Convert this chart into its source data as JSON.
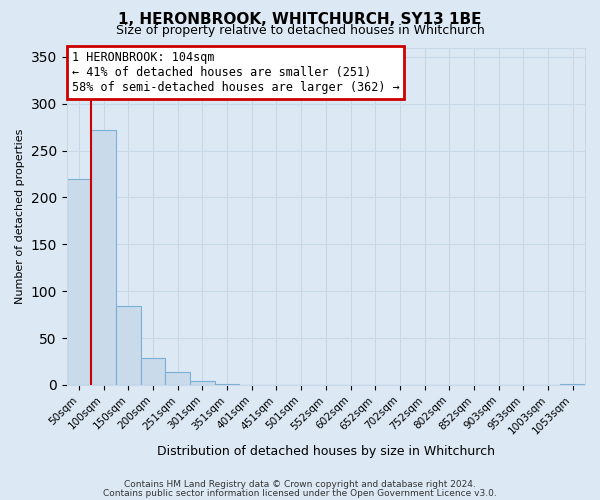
{
  "title": "1, HERONBROOK, WHITCHURCH, SY13 1BE",
  "subtitle": "Size of property relative to detached houses in Whitchurch",
  "xlabel": "Distribution of detached houses by size in Whitchurch",
  "ylabel": "Number of detached properties",
  "bar_labels": [
    "50sqm",
    "100sqm",
    "150sqm",
    "200sqm",
    "251sqm",
    "301sqm",
    "351sqm",
    "401sqm",
    "451sqm",
    "501sqm",
    "552sqm",
    "602sqm",
    "652sqm",
    "702sqm",
    "752sqm",
    "802sqm",
    "852sqm",
    "903sqm",
    "953sqm",
    "1003sqm",
    "1053sqm"
  ],
  "bar_heights": [
    220,
    272,
    84,
    29,
    14,
    4,
    1,
    0,
    0,
    0,
    0,
    0,
    0,
    0,
    0,
    0,
    0,
    0,
    0,
    0,
    1
  ],
  "bar_color": "#c9daea",
  "bar_edge_color": "#7bafd4",
  "vline_x": 0.5,
  "vline_color": "#cc0000",
  "annotation_box_text": "1 HERONBROOK: 104sqm\n← 41% of detached houses are smaller (251)\n58% of semi-detached houses are larger (362) →",
  "annotation_box_facecolor": "white",
  "annotation_box_edgecolor": "#cc0000",
  "ylim": [
    0,
    360
  ],
  "yticks": [
    0,
    50,
    100,
    150,
    200,
    250,
    300,
    350
  ],
  "grid_color": "#c8d8e8",
  "background_color": "#dce9f5",
  "plot_background_color": "#dce9f5",
  "footer_line1": "Contains HM Land Registry data © Crown copyright and database right 2024.",
  "footer_line2": "Contains public sector information licensed under the Open Government Licence v3.0."
}
